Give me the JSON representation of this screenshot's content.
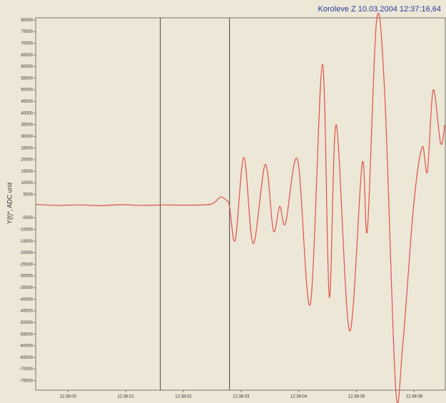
{
  "chart_data": {
    "type": "line",
    "title": "Koroleve Z 10.03.2004  12:37:16,64",
    "y_label": "Y(t)*, ADC unit",
    "x": [
      -0.55,
      -0.19,
      0.19,
      0.56,
      0.93,
      1.3,
      1.67,
      2.04,
      2.41,
      2.53,
      2.65,
      2.75,
      2.8,
      2.9,
      3.05,
      3.21,
      3.42,
      3.56,
      3.67,
      3.77,
      3.98,
      4.2,
      4.41,
      4.53,
      4.65,
      4.88,
      5.1,
      5.19,
      5.35,
      5.49,
      5.68,
      5.8,
      5.99,
      6.14,
      6.23,
      6.33,
      6.46,
      6.53
    ],
    "series": [
      {
        "name": "Koroleve Z",
        "color": "#e0504a",
        "values": [
          800,
          400,
          600,
          300,
          700,
          400,
          600,
          500,
          700,
          1500,
          4000,
          2500,
          0,
          -14500,
          21000,
          -16000,
          18000,
          -10500,
          0,
          -7400,
          20000,
          -42000,
          61000,
          -39000,
          35000,
          -53500,
          18500,
          -10000,
          80000,
          48500,
          -78000,
          -60500,
          0,
          25500,
          15000,
          50000,
          27000,
          35000
        ]
      }
    ],
    "markers": [
      1.6,
      2.8
    ],
    "xlim": [
      -0.56,
      6.54
    ],
    "ylim": [
      -79000,
      81000
    ],
    "xticks": [
      {
        "value": 0,
        "label": "12:38:00"
      },
      {
        "value": 1,
        "label": "12:38:01"
      },
      {
        "value": 2,
        "label": "12:38:02"
      },
      {
        "value": 3,
        "label": "12:38:03"
      },
      {
        "value": 4,
        "label": "12:38:04"
      },
      {
        "value": 5,
        "label": "12:38:05"
      },
      {
        "value": 6,
        "label": "12:38:06"
      }
    ],
    "yticks": [
      80000,
      75000,
      70000,
      65000,
      60000,
      55000,
      50000,
      45000,
      40000,
      35000,
      30000,
      25000,
      20000,
      15000,
      10000,
      5000,
      -5000,
      -10000,
      -15000,
      -20000,
      -25000,
      -30000,
      -35000,
      -40000,
      -45000,
      -50000,
      -55000,
      -60000,
      -65000,
      -70000,
      -75000
    ]
  }
}
